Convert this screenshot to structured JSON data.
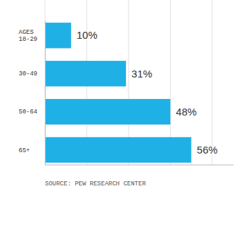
{
  "chart_data": {
    "type": "bar",
    "orientation": "horizontal",
    "categories": [
      "AGES 18-29",
      "30-49",
      "50-64",
      "65+"
    ],
    "values": [
      10,
      31,
      48,
      56
    ],
    "value_labels": [
      "10%",
      "31%",
      "48%",
      "56%"
    ],
    "data_labels": true,
    "color": "#1fb1e6",
    "xlim": [
      0,
      72
    ],
    "xticks": [
      0,
      16,
      32,
      48,
      64
    ],
    "grid": true,
    "tick_labels": "y",
    "source": "SOURCE: PEW RESEARCH CENTER"
  }
}
